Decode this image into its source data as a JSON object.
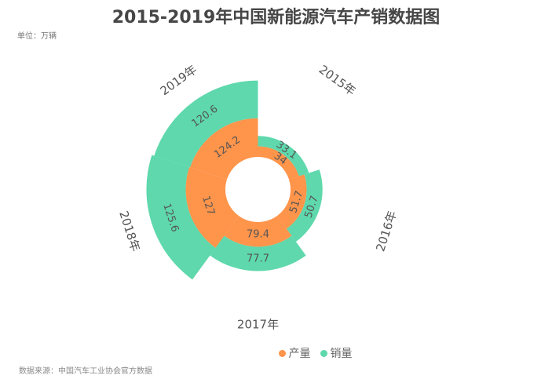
{
  "chart_data": {
    "type": "bar",
    "subtype": "polar-stacked",
    "title": "2015-2019年中国新能源汽车产销数据图",
    "subtitle": "单位：万辆",
    "source": "数据来源：中国汽车工业协会官方数据",
    "categories": [
      "2015年",
      "2016年",
      "2017年",
      "2018年",
      "2019年"
    ],
    "series": [
      {
        "name": "产量",
        "color": "#FF944B",
        "values": [
          34,
          51.7,
          79.4,
          127,
          124.2
        ]
      },
      {
        "name": "销量",
        "color": "#5ED8AC",
        "values": [
          33.1,
          50.7,
          77.7,
          125.6,
          120.6
        ]
      }
    ],
    "stacked": true,
    "legend_position": "bottom",
    "angular_direction": "clockwise-from-top",
    "data_labels": true
  }
}
